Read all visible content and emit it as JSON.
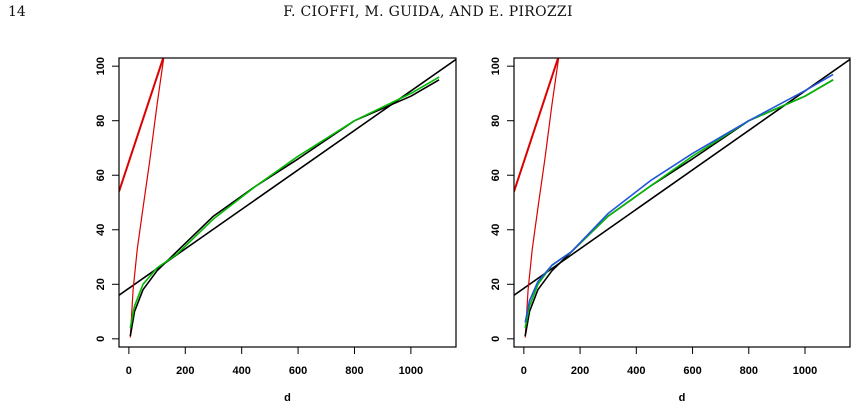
{
  "page": {
    "number": "14",
    "running_head": "F. CIOFFI, M. GUIDA, AND E. PIROZZI"
  },
  "chart_data": [
    {
      "type": "line",
      "xlabel": "d",
      "ylabel": "",
      "xlim": [
        -35,
        1160
      ],
      "ylim": [
        -3,
        103
      ],
      "xticks": [
        0,
        200,
        400,
        600,
        800,
        1000
      ],
      "yticks": [
        0,
        20,
        40,
        60,
        80,
        100
      ],
      "grid": false,
      "series": [
        {
          "color": "#000000",
          "x": [
            -35,
            1160
          ],
          "y": [
            16,
            102.5
          ]
        },
        {
          "color": "#dd0000",
          "x": [
            -35,
            125
          ],
          "y": [
            54,
            104
          ]
        },
        {
          "color": "#dd0000",
          "x": [
            5,
            15,
            30,
            50,
            75,
            100,
            125
          ],
          "y": [
            0.5,
            18,
            33,
            48,
            66,
            86,
            104
          ]
        },
        {
          "color": "#000000",
          "x": [
            5,
            20,
            50,
            100,
            170,
            300,
            450,
            600,
            800,
            1000,
            1100
          ],
          "y": [
            1,
            10,
            18,
            25,
            32,
            45,
            56,
            66,
            80,
            89,
            95
          ]
        },
        {
          "color": "#00bb00",
          "x": [
            5,
            20,
            50,
            100,
            170,
            300,
            450,
            600,
            800,
            1000,
            1100
          ],
          "y": [
            4,
            12,
            20,
            26,
            31,
            44,
            56,
            67,
            80,
            90,
            96
          ]
        }
      ]
    },
    {
      "type": "line",
      "xlabel": "d",
      "ylabel": "",
      "xlim": [
        -35,
        1160
      ],
      "ylim": [
        -3,
        103
      ],
      "xticks": [
        0,
        200,
        400,
        600,
        800,
        1000
      ],
      "yticks": [
        0,
        20,
        40,
        60,
        80,
        100
      ],
      "grid": false,
      "series": [
        {
          "color": "#000000",
          "x": [
            -35,
            1160
          ],
          "y": [
            16,
            102.5
          ]
        },
        {
          "color": "#dd0000",
          "x": [
            -35,
            125
          ],
          "y": [
            54,
            104
          ]
        },
        {
          "color": "#dd0000",
          "x": [
            5,
            15,
            30,
            50,
            75,
            100,
            125
          ],
          "y": [
            0.5,
            18,
            33,
            48,
            66,
            86,
            104
          ]
        },
        {
          "color": "#000000",
          "x": [
            5,
            20,
            50,
            100,
            170,
            300,
            450,
            600,
            800,
            1000,
            1100
          ],
          "y": [
            1,
            10,
            18,
            25,
            32,
            45,
            56,
            66,
            80,
            89,
            95
          ]
        },
        {
          "color": "#00bb00",
          "x": [
            5,
            20,
            50,
            100,
            170,
            300,
            450,
            600,
            800,
            1000,
            1100
          ],
          "y": [
            4,
            12,
            20,
            27,
            32,
            45,
            56,
            67,
            80,
            89,
            95
          ]
        },
        {
          "color": "#2255dd",
          "x": [
            5,
            20,
            50,
            100,
            170,
            300,
            450,
            600,
            800,
            1000,
            1100
          ],
          "y": [
            6,
            14,
            21,
            27,
            32,
            46,
            58,
            68,
            80,
            91,
            97
          ]
        }
      ]
    }
  ]
}
